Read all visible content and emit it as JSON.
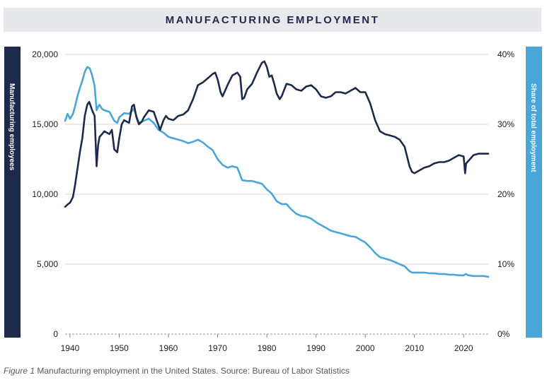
{
  "title": "MANUFACTURING EMPLOYMENT",
  "left_axis_label": "Manufacturing employees",
  "right_axis_label": "Share of total employment",
  "caption": {
    "figure_label": "Figure 1",
    "text": " Manufacturing employment in the United States. Source: Bureau of Labor Statistics"
  },
  "colors": {
    "employees": "#1e2a4a",
    "share": "#4aa6d9",
    "grid": "#d5d7dc"
  },
  "chart_data": {
    "type": "line",
    "title": "MANUFACTURING EMPLOYMENT",
    "xlim": [
      1939,
      2025
    ],
    "x_ticks": [
      1940,
      1950,
      1960,
      1970,
      1980,
      1990,
      2000,
      2010,
      2020
    ],
    "x_tick_labels": [
      "1940",
      "1950",
      "1960",
      "1970",
      "1980",
      "1990",
      "2000",
      "2010",
      "2020"
    ],
    "y_left": {
      "label": "Manufacturing employees",
      "ylim": [
        0,
        20000
      ],
      "ticks": [
        0,
        5000,
        10000,
        15000,
        20000
      ],
      "tick_labels": [
        "0",
        "5,000",
        "10,000",
        "15,000",
        "20,000"
      ]
    },
    "y_right": {
      "label": "Share of total employment",
      "ylim": [
        0,
        40
      ],
      "ticks": [
        0,
        10,
        20,
        30,
        40
      ],
      "tick_labels": [
        "0%",
        "10%",
        "20%",
        "30%",
        "40%"
      ]
    },
    "grid": true,
    "series": [
      {
        "axis": "left",
        "x": [
          1939,
          1939.6,
          1940,
          1940.6,
          1941,
          1941.5,
          1942,
          1942.5,
          1943,
          1943.5,
          1943.9,
          1944.5,
          1945,
          1945.4,
          1945.7,
          1946,
          1946.5,
          1947,
          1948,
          1948.5,
          1949,
          1949.6,
          1950,
          1950.5,
          1951,
          1952,
          1952.6,
          1953,
          1953.5,
          1954,
          1954.6,
          1955,
          1956,
          1957,
          1957.8,
          1958.3,
          1959,
          1959.5,
          1960,
          1961,
          1962,
          1963,
          1964,
          1965,
          1966,
          1967,
          1968,
          1969,
          1969.5,
          1970,
          1970.6,
          1971,
          1972,
          1973,
          1974,
          1974.6,
          1975,
          1975.4,
          1976,
          1977,
          1978,
          1979,
          1979.5,
          1980,
          1980.5,
          1981,
          1981.5,
          1982,
          1982.6,
          1983,
          1984,
          1985,
          1986,
          1987,
          1988,
          1989,
          1990,
          1991,
          1992,
          1993,
          1994,
          1995,
          1996,
          1997,
          1998,
          1999,
          2000,
          2001,
          2002,
          2003,
          2004,
          2005,
          2006,
          2007,
          2008,
          2009,
          2009.5,
          2010,
          2011,
          2012,
          2013,
          2014,
          2015,
          2016,
          2017,
          2018,
          2019,
          2020,
          2020.3,
          2020.5,
          2021,
          2022,
          2023,
          2024,
          2025
        ],
        "values": [
          9100,
          9300,
          9400,
          9800,
          10600,
          11800,
          13000,
          14000,
          15600,
          16400,
          16600,
          16000,
          15600,
          12000,
          13500,
          14100,
          14300,
          14500,
          14300,
          14600,
          13200,
          13000,
          14000,
          15000,
          15300,
          15100,
          16300,
          16400,
          15500,
          15000,
          15200,
          15500,
          16000,
          15900,
          15100,
          14600,
          15300,
          15600,
          15400,
          15300,
          15600,
          15700,
          16000,
          16800,
          17800,
          18000,
          18300,
          18600,
          18700,
          18200,
          17300,
          17000,
          17800,
          18500,
          18700,
          18400,
          16800,
          16900,
          17500,
          17900,
          18700,
          19400,
          19500,
          19100,
          18400,
          18500,
          17900,
          17200,
          16800,
          17000,
          17900,
          17800,
          17500,
          17400,
          17700,
          17800,
          17500,
          17000,
          16900,
          17000,
          17300,
          17300,
          17200,
          17400,
          17600,
          17300,
          17300,
          16500,
          15300,
          14500,
          14300,
          14200,
          14100,
          13900,
          13400,
          12000,
          11600,
          11500,
          11700,
          11900,
          12000,
          12200,
          12300,
          12300,
          12400,
          12600,
          12800,
          12700,
          11500,
          12200,
          12400,
          12800,
          12900,
          12900,
          12900
        ]
      },
      {
        "axis": "right",
        "x": [
          1939,
          1939.5,
          1940,
          1940.6,
          1941,
          1941.5,
          1942,
          1942.5,
          1943,
          1943.5,
          1944,
          1944.5,
          1945,
          1945.4,
          1945.7,
          1946,
          1946.5,
          1947,
          1948,
          1949,
          1949.6,
          1950,
          1951,
          1952,
          1953,
          1953.6,
          1954,
          1955,
          1956,
          1957,
          1958,
          1959,
          1960,
          1961,
          1962,
          1963,
          1964,
          1965,
          1966,
          1967,
          1968,
          1969,
          1970,
          1971,
          1972,
          1973,
          1974,
          1975,
          1976,
          1977,
          1978,
          1979,
          1980,
          1981,
          1982,
          1983,
          1984,
          1985,
          1986,
          1987,
          1988,
          1989,
          1990,
          1991,
          1992,
          1993,
          1994,
          1995,
          1996,
          1997,
          1998,
          1999,
          2000,
          2001,
          2002,
          2003,
          2004,
          2005,
          2006,
          2007,
          2008,
          2009,
          2009.5,
          2010,
          2011,
          2012,
          2013,
          2014,
          2015,
          2016,
          2017,
          2018,
          2019,
          2020,
          2020.4,
          2021,
          2022,
          2023,
          2024,
          2025
        ],
        "values": [
          30.5,
          31.5,
          30.8,
          31.5,
          32.5,
          34.0,
          35.2,
          36.2,
          37.5,
          38.2,
          38.0,
          37.0,
          35.5,
          32.0,
          32.5,
          32.8,
          32.2,
          32.0,
          31.8,
          30.5,
          30.2,
          31.0,
          31.6,
          31.5,
          32.2,
          31.0,
          30.2,
          30.5,
          30.8,
          30.2,
          29.2,
          28.8,
          28.2,
          28.0,
          27.8,
          27.6,
          27.3,
          27.5,
          27.8,
          27.4,
          26.8,
          26.3,
          25.0,
          24.2,
          23.8,
          24.0,
          23.8,
          22.0,
          21.9,
          21.9,
          21.7,
          21.5,
          20.7,
          20.1,
          19.0,
          18.6,
          18.6,
          17.8,
          17.2,
          16.9,
          16.8,
          16.5,
          16.0,
          15.6,
          15.2,
          14.8,
          14.6,
          14.4,
          14.2,
          14.0,
          13.9,
          13.5,
          13.1,
          12.4,
          11.6,
          11.0,
          10.8,
          10.6,
          10.3,
          10.0,
          9.7,
          9.0,
          8.8,
          8.8,
          8.8,
          8.8,
          8.7,
          8.7,
          8.6,
          8.6,
          8.5,
          8.5,
          8.4,
          8.4,
          8.6,
          8.4,
          8.3,
          8.3,
          8.3,
          8.2
        ]
      }
    ]
  }
}
